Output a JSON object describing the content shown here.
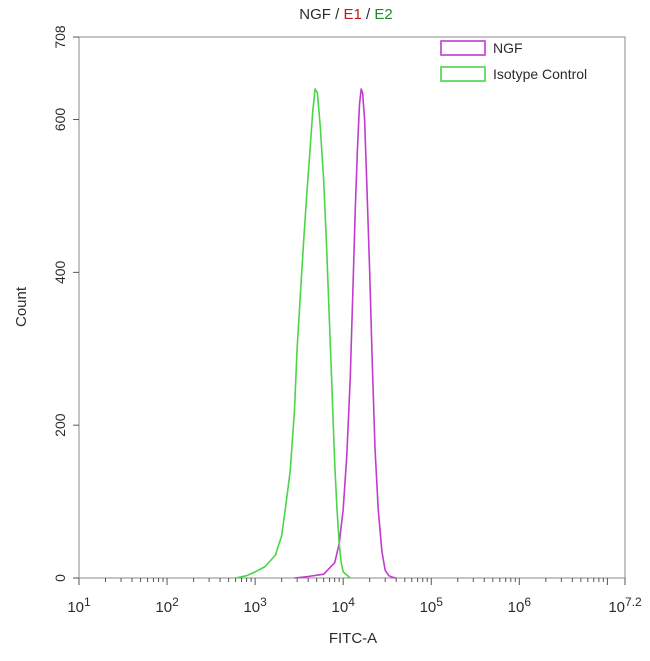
{
  "chart_data": {
    "type": "line",
    "title_parts": [
      {
        "text": "NGF",
        "color": "#2b2b2b"
      },
      {
        "text": " / ",
        "color": "#2b2b2b"
      },
      {
        "text": "E1",
        "color": "#c0191e"
      },
      {
        "text": " / ",
        "color": "#2b2b2b"
      },
      {
        "text": "E2",
        "color": "#1e8b2a"
      }
    ],
    "xlabel": "FITC-A",
    "ylabel": "Count",
    "x_scale": "log10",
    "xlim": [
      10,
      15848932
    ],
    "ylim": [
      0,
      708
    ],
    "x_ticks": [
      {
        "value": 10,
        "base": "10",
        "exp": "1"
      },
      {
        "value": 100,
        "base": "10",
        "exp": "2"
      },
      {
        "value": 1000,
        "base": "10",
        "exp": "3"
      },
      {
        "value": 10000,
        "base": "10",
        "exp": "4"
      },
      {
        "value": 100000,
        "base": "10",
        "exp": "5"
      },
      {
        "value": 1000000,
        "base": "10",
        "exp": "6"
      },
      {
        "value": 15848932,
        "base": "10",
        "exp": "7.2"
      }
    ],
    "y_ticks": [
      {
        "value": 0,
        "label": "0"
      },
      {
        "value": 200,
        "label": "200"
      },
      {
        "value": 400,
        "label": "400"
      },
      {
        "value": 600,
        "label": "600"
      },
      {
        "value": 708,
        "label": "708"
      }
    ],
    "legend_position": "top-right",
    "series": [
      {
        "name": "NGF",
        "color": "#c23ad0",
        "x": [
          2800,
          4000,
          6000,
          8000,
          9000,
          10000,
          11000,
          12000,
          13000,
          13700,
          14500,
          15300,
          16000,
          16600,
          17500,
          18500,
          20000,
          21400,
          23000,
          25000,
          27500,
          30000,
          33000,
          36000,
          40000
        ],
        "y": [
          0,
          2,
          5,
          20,
          45,
          90,
          160,
          260,
          390,
          480,
          560,
          620,
          640,
          635,
          600,
          520,
          400,
          280,
          170,
          90,
          35,
          10,
          3,
          1,
          0
        ]
      },
      {
        "name": "Isotype Control",
        "color": "#49d649",
        "x": [
          600,
          800,
          1000,
          1300,
          1700,
          2000,
          2200,
          2500,
          2800,
          3000,
          3300,
          3600,
          3900,
          4200,
          4500,
          4800,
          5100,
          5500,
          6000,
          6500,
          7000,
          7500,
          8000,
          8500,
          9000,
          9500,
          10000,
          12000
        ],
        "y": [
          0,
          3,
          8,
          15,
          30,
          55,
          90,
          140,
          220,
          300,
          380,
          450,
          510,
          560,
          610,
          640,
          635,
          590,
          520,
          430,
          330,
          240,
          150,
          90,
          45,
          20,
          8,
          0
        ]
      }
    ]
  }
}
